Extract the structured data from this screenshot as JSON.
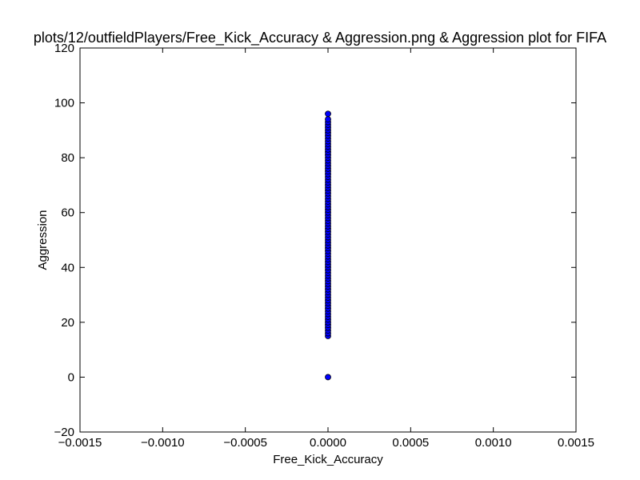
{
  "chart_data": {
    "type": "scatter",
    "title": "plots/12/outfieldPlayers/Free_Kick_Accuracy & Aggression.png & Aggression plot for FIFA",
    "xlabel": "Free_Kick_Accuracy",
    "ylabel": "Aggression",
    "xlim": [
      -0.0015,
      0.0015
    ],
    "ylim": [
      -20,
      120
    ],
    "xticks": [
      -0.0015,
      -0.001,
      -0.0005,
      0.0,
      0.0005,
      0.001,
      0.0015
    ],
    "xtick_labels": [
      "−0.0015",
      "−0.0010",
      "−0.0005",
      "0.0000",
      "0.0005",
      "0.0010",
      "0.0015"
    ],
    "yticks": [
      -20,
      0,
      20,
      40,
      60,
      80,
      100,
      120
    ],
    "ytick_labels": [
      "−20",
      "0",
      "20",
      "40",
      "60",
      "80",
      "100",
      "120"
    ],
    "grid": false,
    "marker_color": "#0000ff",
    "marker_edge_color": "#000000",
    "points": {
      "x": [
        0,
        0,
        0,
        0,
        0,
        0,
        0,
        0,
        0,
        0,
        0,
        0,
        0,
        0,
        0,
        0,
        0,
        0,
        0,
        0,
        0,
        0,
        0,
        0,
        0,
        0,
        0,
        0,
        0,
        0,
        0,
        0,
        0,
        0,
        0,
        0,
        0,
        0,
        0,
        0,
        0,
        0,
        0,
        0,
        0,
        0,
        0,
        0,
        0,
        0,
        0,
        0,
        0,
        0,
        0,
        0,
        0,
        0,
        0,
        0,
        0,
        0,
        0,
        0,
        0,
        0,
        0,
        0,
        0,
        0,
        0,
        0,
        0,
        0,
        0,
        0,
        0,
        0,
        0,
        0,
        0,
        0
      ],
      "y": [
        0,
        15,
        16,
        17,
        18,
        19,
        20,
        21,
        22,
        23,
        24,
        25,
        26,
        27,
        28,
        29,
        30,
        31,
        32,
        33,
        34,
        35,
        36,
        37,
        38,
        39,
        40,
        41,
        42,
        43,
        44,
        45,
        46,
        47,
        48,
        49,
        50,
        51,
        52,
        53,
        54,
        55,
        56,
        57,
        58,
        59,
        60,
        61,
        62,
        63,
        64,
        65,
        66,
        67,
        68,
        69,
        70,
        71,
        72,
        73,
        74,
        75,
        76,
        77,
        78,
        79,
        80,
        81,
        82,
        83,
        84,
        85,
        86,
        87,
        88,
        89,
        90,
        91,
        92,
        93,
        94,
        96
      ]
    }
  }
}
